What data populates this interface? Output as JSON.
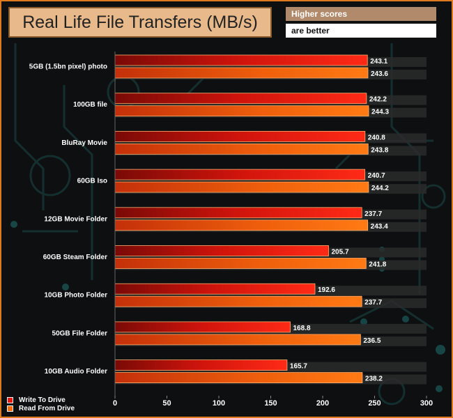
{
  "header": {
    "title": "Real Life File Transfers (MB/s)",
    "note_line1": "Higher scores",
    "note_line2": "are better"
  },
  "colors": {
    "write": "#e8170f",
    "read": "#f46a0a",
    "track": "#2a2a2a",
    "accent_border": "#e07a1f"
  },
  "chart_data": {
    "type": "bar",
    "orientation": "horizontal",
    "categories": [
      "5GB (1.5bn pixel) photo",
      "100GB file",
      "BluRay Movie",
      "60GB Iso",
      "12GB Movie Folder",
      "60GB Steam Folder",
      "10GB Photo Folder",
      "50GB File Folder",
      "10GB Audio Folder"
    ],
    "series": [
      {
        "name": "Write To  Drive",
        "values": [
          243.1,
          242.2,
          240.8,
          240.7,
          237.7,
          205.7,
          192.6,
          168.8,
          165.7
        ]
      },
      {
        "name": "Read From  Drive",
        "values": [
          243.6,
          244.3,
          243.8,
          244.2,
          243.4,
          241.8,
          237.7,
          236.5,
          238.2
        ]
      }
    ],
    "xlim": [
      0,
      300
    ],
    "xticks": [
      0,
      50,
      100,
      150,
      200,
      250,
      300
    ],
    "legend_position": "bottom-left",
    "grid": false
  }
}
